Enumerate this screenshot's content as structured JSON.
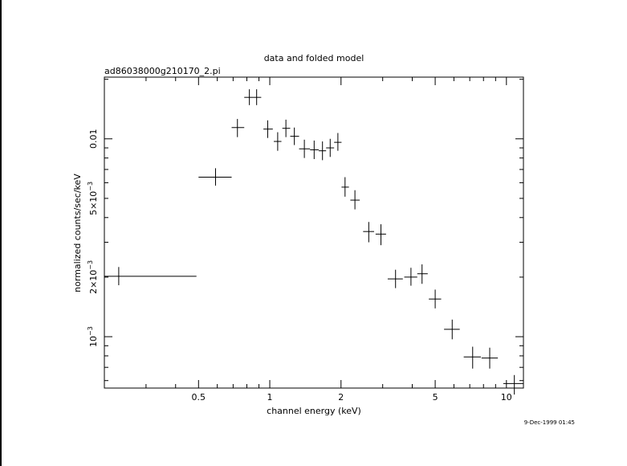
{
  "chart_data": {
    "type": "scatter",
    "title": "data and folded model",
    "subtitle": "ad86038000g210170_2.pi",
    "xlabel": "channel energy (keV)",
    "ylabel": "normalized counts/sec/keV",
    "timestamp": "9-Dec-1999 01:45",
    "x_scale": "log",
    "y_scale": "log",
    "xlim": [
      0.2,
      11.8
    ],
    "ylim": [
      0.00055,
      0.0205
    ],
    "x_tick_labels": [
      "0.5",
      "1",
      "2",
      "5",
      "10"
    ],
    "x_tick_values": [
      0.5,
      1,
      2,
      5,
      10
    ],
    "y_tick_labels": [
      {
        "value": 0.01,
        "mant": "0.01",
        "exp": ""
      },
      {
        "value": 0.005,
        "mant": "5×10",
        "exp": "−3"
      },
      {
        "value": 0.002,
        "mant": "2×10",
        "exp": "−3"
      },
      {
        "value": 0.001,
        "mant": "10",
        "exp": "−3"
      }
    ],
    "grid": false,
    "series": [
      {
        "points": [
          {
            "x": 0.23,
            "xlo": 0.2,
            "xhi": 0.49,
            "y": 0.00202,
            "ylo": 0.00182,
            "yhi": 0.00225
          },
          {
            "x": 0.59,
            "xlo": 0.5,
            "xhi": 0.69,
            "y": 0.0064,
            "ylo": 0.0058,
            "yhi": 0.0071
          },
          {
            "x": 0.73,
            "xlo": 0.69,
            "xhi": 0.78,
            "y": 0.0114,
            "ylo": 0.0102,
            "yhi": 0.0126
          },
          {
            "x": 0.82,
            "xlo": 0.78,
            "xhi": 0.855,
            "y": 0.0162,
            "ylo": 0.0148,
            "yhi": 0.0178
          },
          {
            "x": 0.88,
            "xlo": 0.855,
            "xhi": 0.92,
            "y": 0.0162,
            "ylo": 0.0148,
            "yhi": 0.0178
          },
          {
            "x": 0.98,
            "xlo": 0.94,
            "xhi": 1.03,
            "y": 0.0112,
            "ylo": 0.0101,
            "yhi": 0.0124
          },
          {
            "x": 1.08,
            "xlo": 1.04,
            "xhi": 1.12,
            "y": 0.0097,
            "ylo": 0.0087,
            "yhi": 0.0108
          },
          {
            "x": 1.17,
            "xlo": 1.13,
            "xhi": 1.22,
            "y": 0.0113,
            "ylo": 0.0102,
            "yhi": 0.0125
          },
          {
            "x": 1.27,
            "xlo": 1.22,
            "xhi": 1.33,
            "y": 0.0103,
            "ylo": 0.0093,
            "yhi": 0.0114
          },
          {
            "x": 1.4,
            "xlo": 1.33,
            "xhi": 1.48,
            "y": 0.0089,
            "ylo": 0.008,
            "yhi": 0.0099
          },
          {
            "x": 1.54,
            "xlo": 1.48,
            "xhi": 1.61,
            "y": 0.0088,
            "ylo": 0.0079,
            "yhi": 0.0098
          },
          {
            "x": 1.67,
            "xlo": 1.61,
            "xhi": 1.73,
            "y": 0.0087,
            "ylo": 0.0078,
            "yhi": 0.0097
          },
          {
            "x": 1.8,
            "xlo": 1.73,
            "xhi": 1.87,
            "y": 0.009,
            "ylo": 0.0081,
            "yhi": 0.01
          },
          {
            "x": 1.94,
            "xlo": 1.87,
            "xhi": 2.01,
            "y": 0.0096,
            "ylo": 0.0087,
            "yhi": 0.0107
          },
          {
            "x": 2.08,
            "xlo": 2.01,
            "xhi": 2.16,
            "y": 0.0057,
            "ylo": 0.0051,
            "yhi": 0.0064
          },
          {
            "x": 2.29,
            "xlo": 2.19,
            "xhi": 2.4,
            "y": 0.0049,
            "ylo": 0.0044,
            "yhi": 0.0055
          },
          {
            "x": 2.62,
            "xlo": 2.48,
            "xhi": 2.76,
            "y": 0.0034,
            "ylo": 0.003,
            "yhi": 0.0038
          },
          {
            "x": 2.95,
            "xlo": 2.8,
            "xhi": 3.1,
            "y": 0.0033,
            "ylo": 0.0029,
            "yhi": 0.0037
          },
          {
            "x": 3.4,
            "xlo": 3.15,
            "xhi": 3.65,
            "y": 0.00196,
            "ylo": 0.00176,
            "yhi": 0.00218
          },
          {
            "x": 3.95,
            "xlo": 3.7,
            "xhi": 4.2,
            "y": 0.002,
            "ylo": 0.00181,
            "yhi": 0.00223
          },
          {
            "x": 4.4,
            "xlo": 4.2,
            "xhi": 4.65,
            "y": 0.00208,
            "ylo": 0.00185,
            "yhi": 0.00232
          },
          {
            "x": 5.0,
            "xlo": 4.7,
            "xhi": 5.3,
            "y": 0.00155,
            "ylo": 0.00139,
            "yhi": 0.00173
          },
          {
            "x": 5.9,
            "xlo": 5.45,
            "xhi": 6.35,
            "y": 0.00109,
            "ylo": 0.00097,
            "yhi": 0.00122
          },
          {
            "x": 7.2,
            "xlo": 6.6,
            "xhi": 7.8,
            "y": 0.00079,
            "ylo": 0.00069,
            "yhi": 0.00089
          },
          {
            "x": 8.5,
            "xlo": 7.85,
            "xhi": 9.2,
            "y": 0.00078,
            "ylo": 0.00069,
            "yhi": 0.00088
          },
          {
            "x": 10.8,
            "xlo": 9.7,
            "xhi": 11.8,
            "y": 0.00058,
            "ylo": 0.00051,
            "yhi": 0.00064
          }
        ]
      }
    ]
  }
}
